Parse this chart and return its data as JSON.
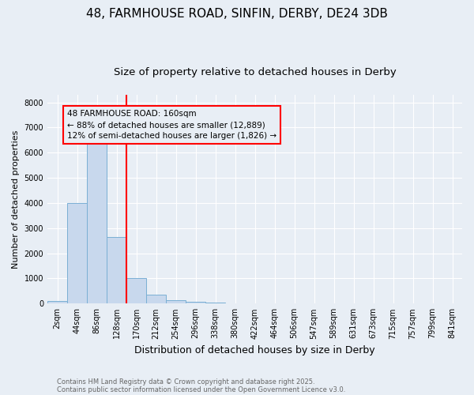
{
  "title1": "48, FARMHOUSE ROAD, SINFIN, DERBY, DE24 3DB",
  "title2": "Size of property relative to detached houses in Derby",
  "xlabel": "Distribution of detached houses by size in Derby",
  "ylabel": "Number of detached properties",
  "categories": [
    "2sqm",
    "44sqm",
    "86sqm",
    "128sqm",
    "170sqm",
    "212sqm",
    "254sqm",
    "296sqm",
    "338sqm",
    "380sqm",
    "422sqm",
    "464sqm",
    "506sqm",
    "547sqm",
    "589sqm",
    "631sqm",
    "673sqm",
    "715sqm",
    "757sqm",
    "799sqm",
    "841sqm"
  ],
  "bar_heights": [
    100,
    4000,
    6500,
    2650,
    1000,
    350,
    130,
    60,
    50,
    0,
    0,
    0,
    0,
    0,
    0,
    0,
    0,
    0,
    0,
    0,
    0
  ],
  "bar_color": "#c8d8ed",
  "bar_edgecolor": "#7aafd4",
  "vline_x_index": 4,
  "vline_color": "red",
  "annotation_text": "48 FARMHOUSE ROAD: 160sqm\n← 88% of detached houses are smaller (12,889)\n12% of semi-detached houses are larger (1,826) →",
  "ylim": [
    0,
    8300
  ],
  "footnote1": "Contains HM Land Registry data © Crown copyright and database right 2025.",
  "footnote2": "Contains public sector information licensed under the Open Government Licence v3.0.",
  "bg_color": "#e8eef5",
  "grid_color": "#ffffff",
  "title1_fontsize": 11,
  "title2_fontsize": 9.5,
  "ylabel_fontsize": 8,
  "xlabel_fontsize": 9,
  "tick_fontsize": 7,
  "annot_fontsize": 7.5,
  "footnote_fontsize": 6,
  "footnote_color": "#666666"
}
